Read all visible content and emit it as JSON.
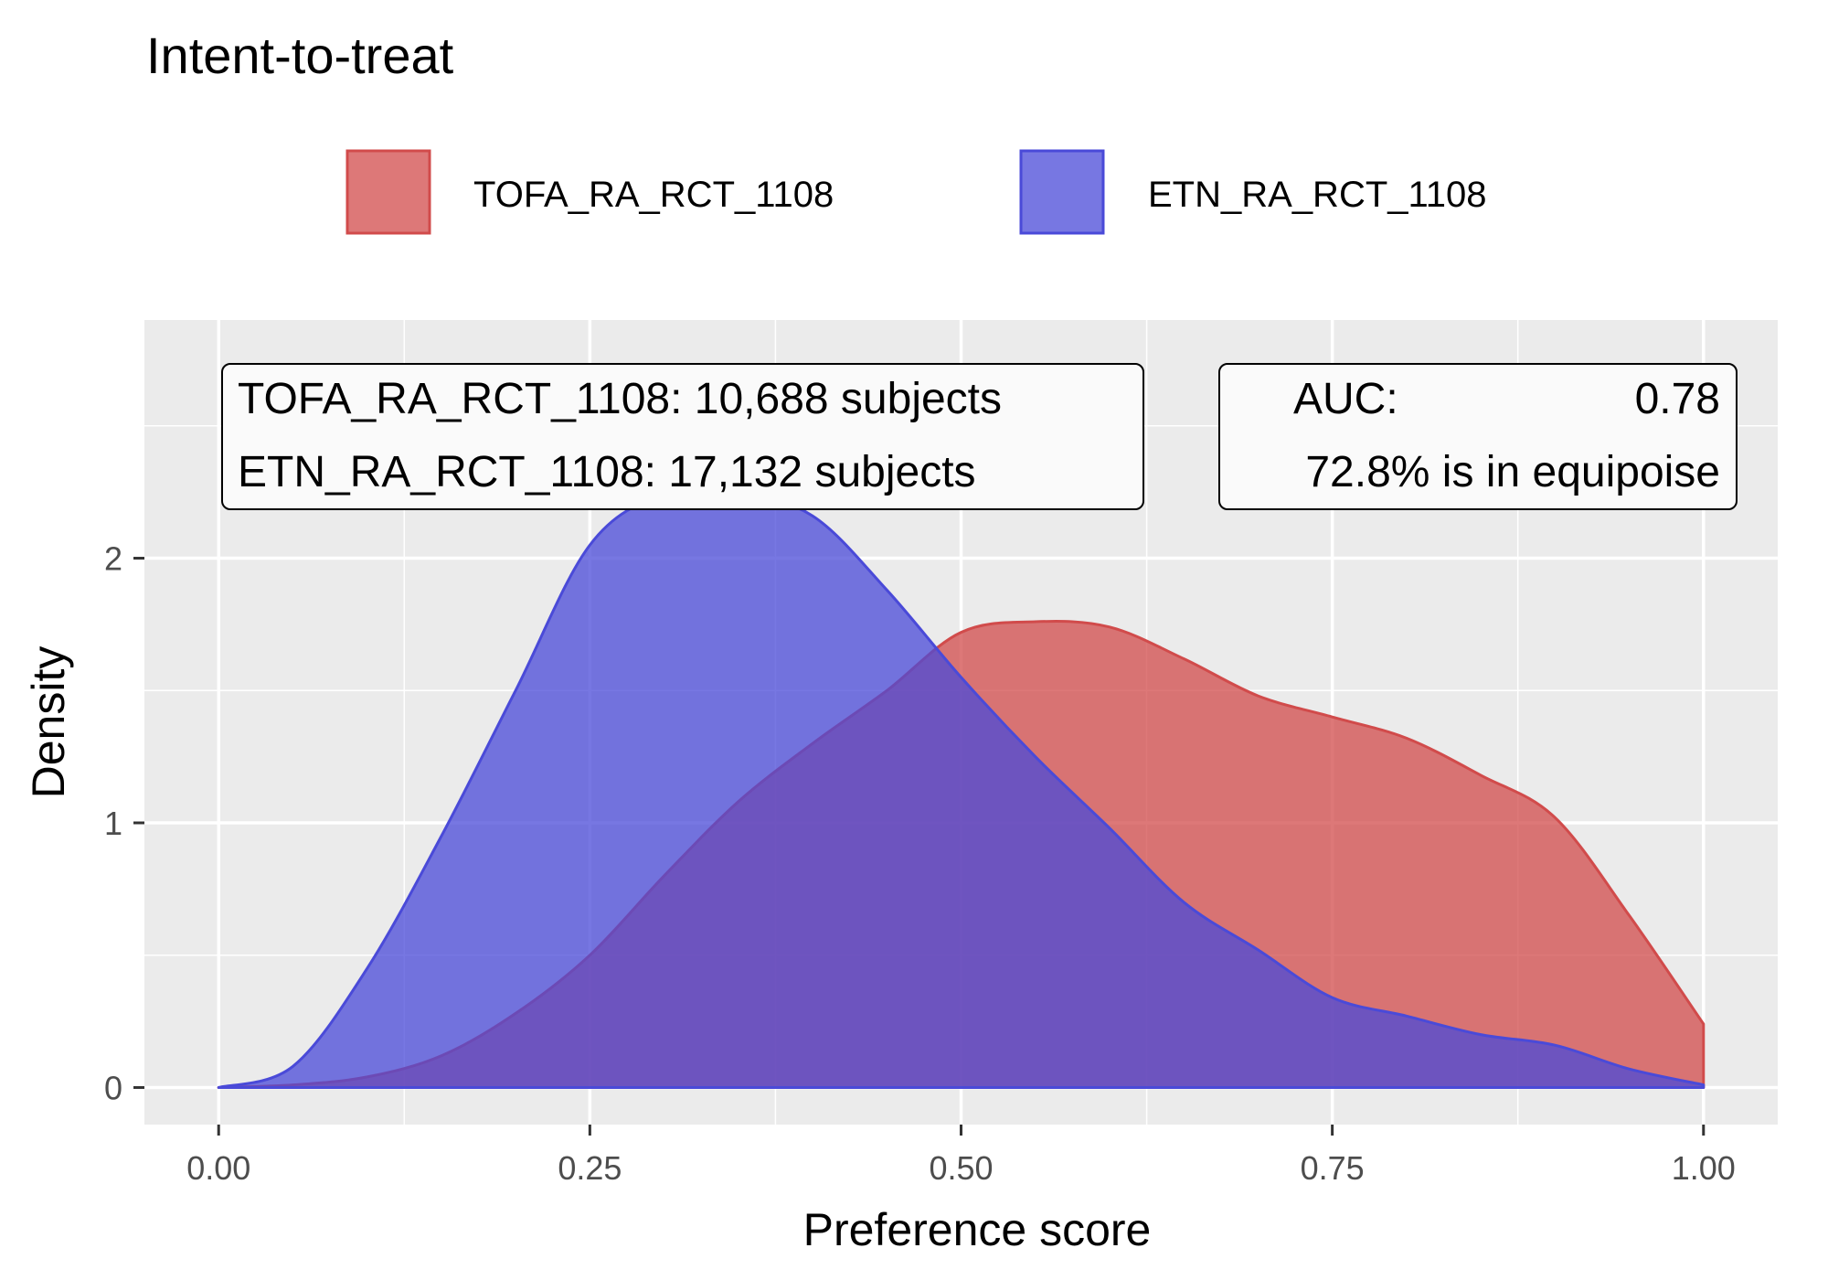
{
  "chart_data": {
    "type": "area",
    "title": "Intent-to-treat",
    "xlabel": "Preference score",
    "ylabel": "Density",
    "xlim": [
      -0.05,
      1.05
    ],
    "ylim": [
      -0.14,
      2.9
    ],
    "x_ticks": [
      0.0,
      0.25,
      0.5,
      0.75,
      1.0
    ],
    "x_tick_labels": [
      "0.00",
      "0.25",
      "0.50",
      "0.75",
      "1.00"
    ],
    "y_ticks": [
      0,
      1,
      2
    ],
    "y_tick_labels": [
      "0",
      "1",
      "2"
    ],
    "grid": true,
    "legend_position": "top",
    "series": [
      {
        "name": "TOFA_RA_RCT_1108",
        "color": "#d14b4b",
        "fill_opacity": 0.75,
        "x": [
          0.0,
          0.05,
          0.1,
          0.15,
          0.2,
          0.25,
          0.3,
          0.35,
          0.4,
          0.45,
          0.5,
          0.55,
          0.6,
          0.65,
          0.7,
          0.75,
          0.8,
          0.85,
          0.9,
          0.95,
          1.0
        ],
        "y": [
          0.0,
          0.01,
          0.04,
          0.12,
          0.28,
          0.5,
          0.8,
          1.08,
          1.3,
          1.5,
          1.72,
          1.76,
          1.74,
          1.62,
          1.48,
          1.4,
          1.32,
          1.18,
          1.02,
          0.65,
          0.24
        ]
      },
      {
        "name": "ETN_RA_RCT_1108",
        "color": "#4a4ad8",
        "fill_opacity": 0.75,
        "x": [
          0.0,
          0.05,
          0.1,
          0.15,
          0.2,
          0.25,
          0.3,
          0.35,
          0.4,
          0.45,
          0.5,
          0.55,
          0.6,
          0.65,
          0.7,
          0.75,
          0.8,
          0.85,
          0.9,
          0.95,
          1.0
        ],
        "y": [
          0.0,
          0.08,
          0.45,
          0.95,
          1.5,
          2.05,
          2.24,
          2.24,
          2.16,
          1.88,
          1.55,
          1.25,
          0.98,
          0.7,
          0.52,
          0.34,
          0.27,
          0.2,
          0.16,
          0.07,
          0.01
        ]
      }
    ],
    "annotations": {
      "counts_box": [
        "TOFA_RA_RCT_1108: 10,688 subjects",
        "ETN_RA_RCT_1108: 17,132 subjects"
      ],
      "auc_label": "AUC:",
      "auc_value": "0.78",
      "equipoise_text": "72.8% is in equipoise"
    },
    "panel_background": "#ebebeb",
    "grid_color": "#ffffff"
  }
}
